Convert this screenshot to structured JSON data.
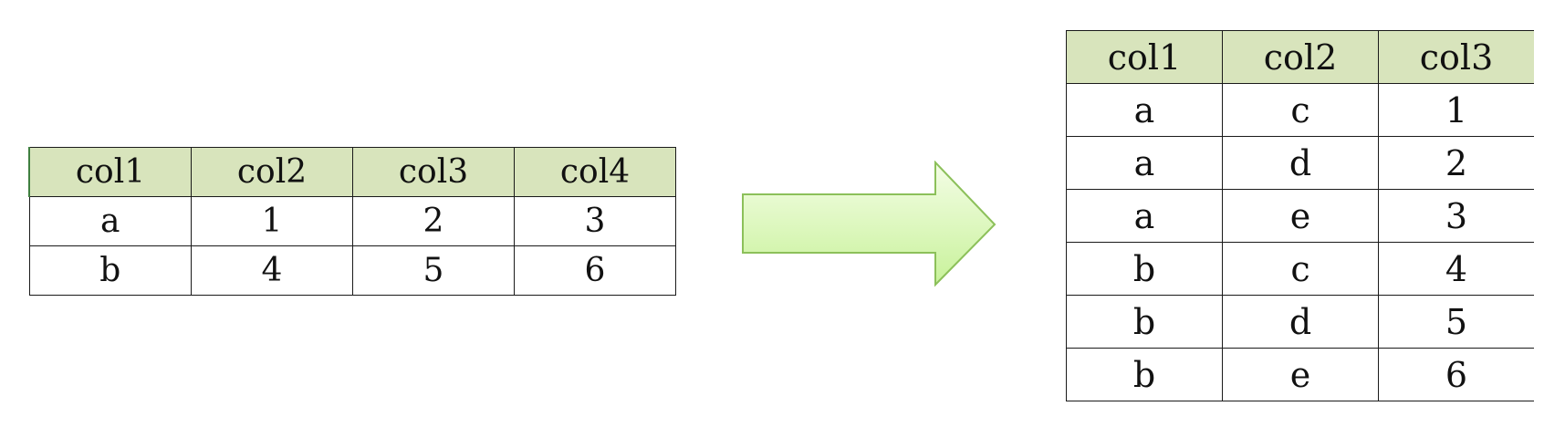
{
  "left_table": {
    "headers": [
      "col1",
      "col2",
      "col3",
      "col4"
    ],
    "rows": [
      [
        "a",
        "1",
        "2",
        "3"
      ],
      [
        "b",
        "4",
        "5",
        "6"
      ]
    ]
  },
  "right_table": {
    "headers": [
      "col1",
      "col2",
      "col3"
    ],
    "rows": [
      [
        "a",
        "c",
        "1"
      ],
      [
        "a",
        "d",
        "2"
      ],
      [
        "a",
        "e",
        "3"
      ],
      [
        "b",
        "c",
        "4"
      ],
      [
        "b",
        "d",
        "5"
      ],
      [
        "b",
        "e",
        "6"
      ]
    ]
  },
  "colors": {
    "header_fill": "#d8e4bc",
    "arrow_fill_light": "#f4fde6",
    "arrow_fill_dark": "#c8f29a",
    "arrow_stroke": "#8cc05a"
  },
  "arrow": {
    "direction": "right",
    "icon": "right-arrow-icon"
  }
}
